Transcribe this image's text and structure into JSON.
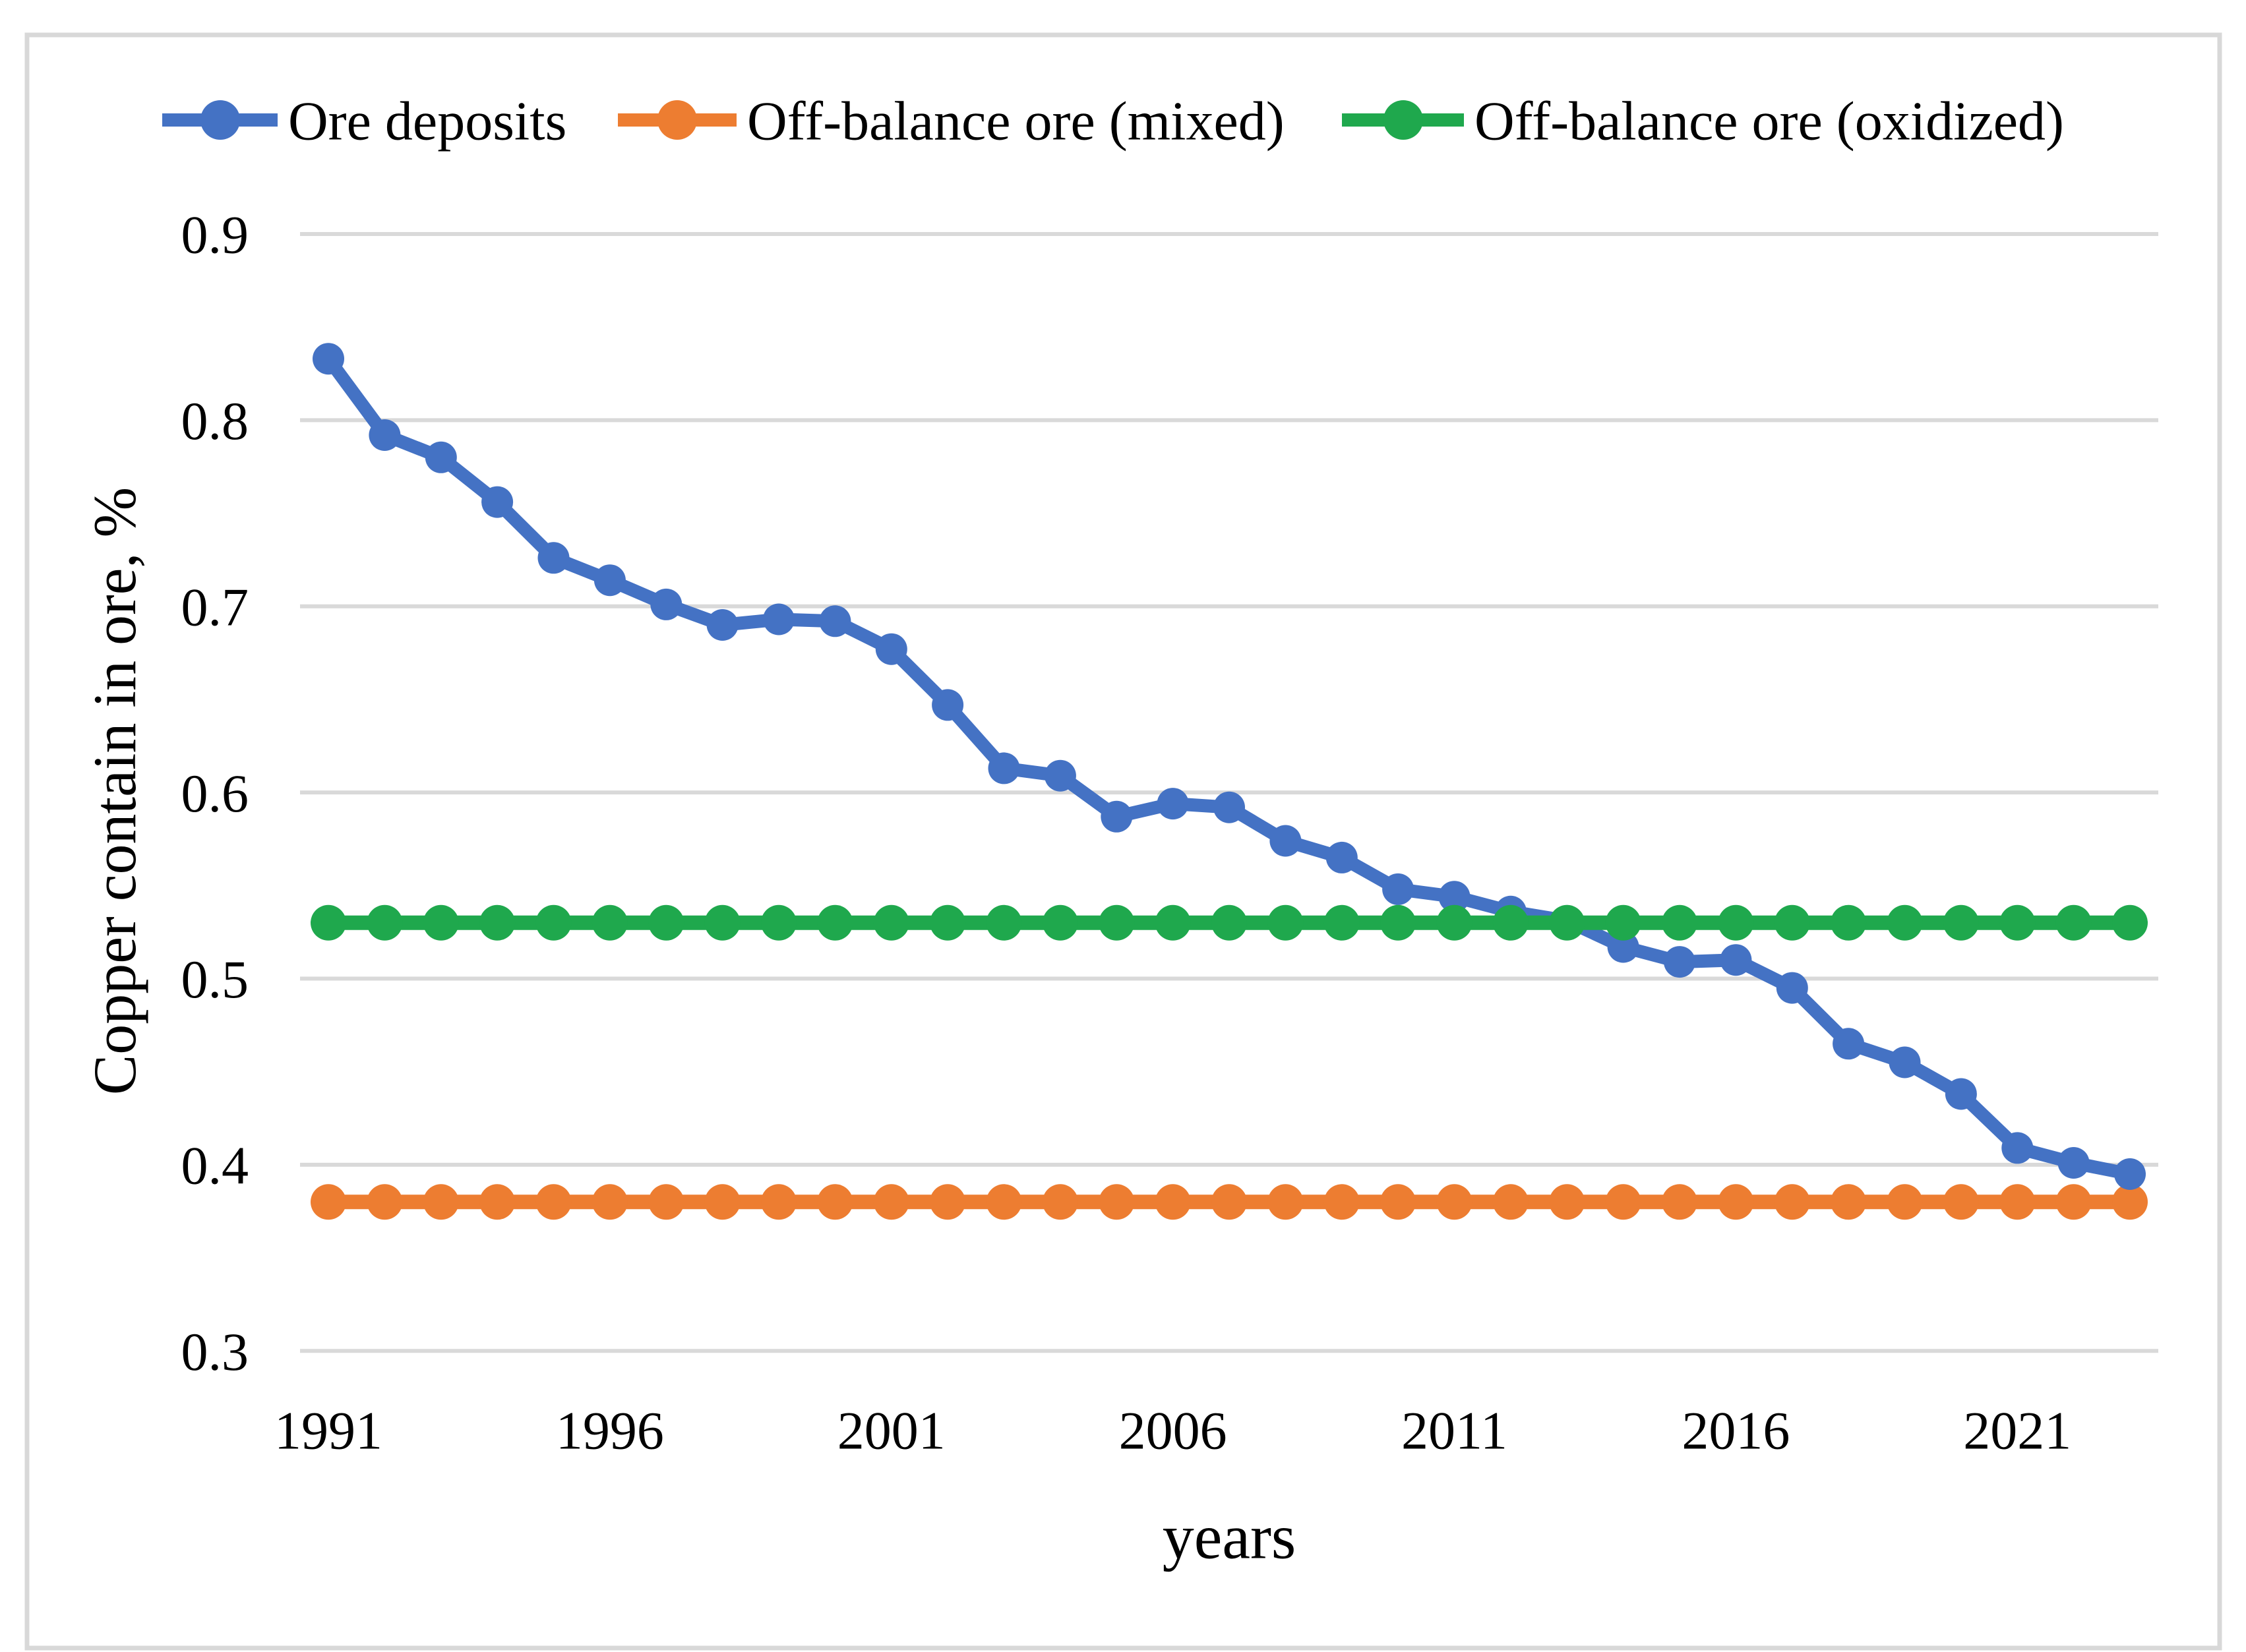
{
  "figure": {
    "border_color": "#d8d8d8",
    "background": "#ffffff",
    "gridline_color": "#d9d9d9"
  },
  "legend": {
    "items": [
      {
        "label": "Ore deposits",
        "color": "#4472c4"
      },
      {
        "label": "Off-balance ore (mixed)",
        "color": "#ed7d31"
      },
      {
        "label": "Off-balance ore (oxidized)",
        "color": "#1fa84d"
      }
    ]
  },
  "chart_data": {
    "type": "line",
    "title": "",
    "xlabel": "years",
    "ylabel": "Copper contain in ore, %",
    "x": [
      1991,
      1992,
      1993,
      1994,
      1995,
      1996,
      1997,
      1998,
      1999,
      2000,
      2001,
      2002,
      2003,
      2004,
      2005,
      2006,
      2007,
      2008,
      2009,
      2010,
      2011,
      2012,
      2013,
      2014,
      2015,
      2016,
      2017,
      2018,
      2019,
      2020,
      2021,
      2022,
      2023
    ],
    "xticks": [
      1991,
      1996,
      2001,
      2006,
      2011,
      2016,
      2021
    ],
    "yticks": [
      0.9,
      0.8,
      0.7,
      0.6,
      0.5,
      0.4,
      0.3
    ],
    "ylim": [
      0.3,
      0.9
    ],
    "grid": true,
    "legend_position": "top",
    "series": [
      {
        "name": "Ore deposits",
        "color": "#4472c4",
        "values": [
          0.833,
          0.792,
          0.78,
          0.756,
          0.726,
          0.714,
          0.701,
          0.69,
          0.693,
          0.692,
          0.677,
          0.647,
          0.613,
          0.609,
          0.587,
          0.594,
          0.592,
          0.574,
          0.565,
          0.548,
          0.544,
          0.536,
          0.531,
          0.517,
          0.509,
          0.51,
          0.495,
          0.465,
          0.455,
          0.438,
          0.409,
          0.401,
          0.395
        ]
      },
      {
        "name": "Off-balance ore (mixed)",
        "color": "#ed7d31",
        "values": [
          0.38,
          0.38,
          0.38,
          0.38,
          0.38,
          0.38,
          0.38,
          0.38,
          0.38,
          0.38,
          0.38,
          0.38,
          0.38,
          0.38,
          0.38,
          0.38,
          0.38,
          0.38,
          0.38,
          0.38,
          0.38,
          0.38,
          0.38,
          0.38,
          0.38,
          0.38,
          0.38,
          0.38,
          0.38,
          0.38,
          0.38,
          0.38,
          0.38
        ]
      },
      {
        "name": "Off-balance ore (oxidized)",
        "color": "#1fa84d",
        "values": [
          0.53,
          0.53,
          0.53,
          0.53,
          0.53,
          0.53,
          0.53,
          0.53,
          0.53,
          0.53,
          0.53,
          0.53,
          0.53,
          0.53,
          0.53,
          0.53,
          0.53,
          0.53,
          0.53,
          0.53,
          0.53,
          0.53,
          0.53,
          0.53,
          0.53,
          0.53,
          0.53,
          0.53,
          0.53,
          0.53,
          0.53,
          0.53,
          0.53
        ]
      }
    ]
  }
}
